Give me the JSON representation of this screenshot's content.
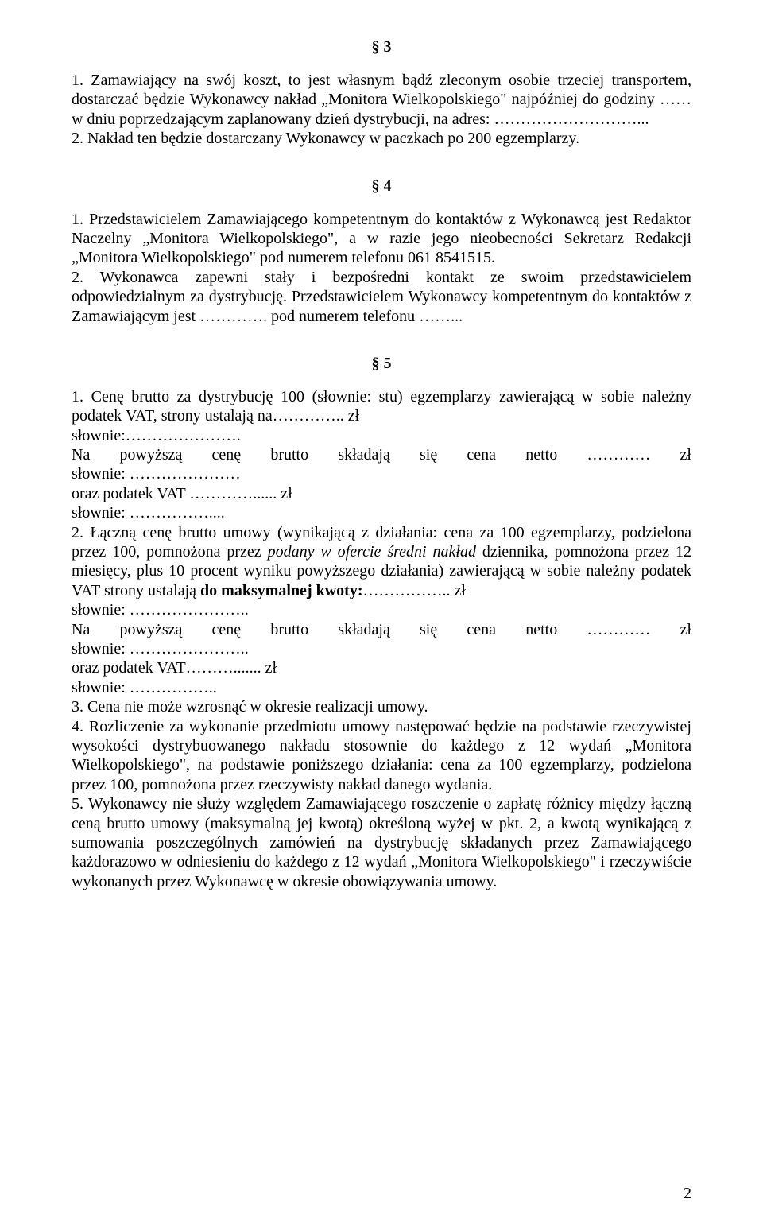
{
  "section3": {
    "number": "§ 3",
    "p1": "1. Zamawiający na swój koszt, to jest własnym bądź zleconym osobie trzeciej transportem, dostarczać będzie Wykonawcy nakład „Monitora Wielkopolskiego\" najpóźniej do godziny …… w dniu poprzedzającym zaplanowany dzień dystrybucji, na adres: ………………………...",
    "p2": "2. Nakład ten będzie dostarczany Wykonawcy w paczkach po 200 egzemplarzy."
  },
  "section4": {
    "number": "§ 4",
    "p1": "1. Przedstawicielem Zamawiającego kompetentnym do kontaktów z Wykonawcą jest Redaktor Naczelny „Monitora Wielkopolskiego\", a w razie jego nieobecności Sekretarz Redakcji „Monitora Wielkopolskiego\" pod numerem telefonu 061 8541515.",
    "p2": "2. Wykonawca zapewni stały i bezpośredni kontakt ze swoim przedstawicielem odpowiedzialnym za dystrybucję. Przedstawicielem Wykonawcy kompetentnym do kontaktów z Zamawiającym jest …………. pod numerem telefonu ……..."
  },
  "section5": {
    "number": "§ 5",
    "p1a": "1.    Cenę brutto za dystrybucję 100 (słownie: stu) egzemplarzy zawierającą w sobie należny podatek VAT, strony ustalają na………….. zł",
    "p1b": "słownie:………………….",
    "line_na1_a": "Na",
    "line_na1_b": "powyższą",
    "line_na1_c": "cenę",
    "line_na1_d": "brutto",
    "line_na1_e": "składają",
    "line_na1_f": "się",
    "line_na1_g": "cena",
    "line_na1_h": "netto",
    "line_na1_i": "…………",
    "line_na1_j": "zł",
    "p1c": "słownie: …………………",
    "p1d": "oraz podatek VAT …………...... zł",
    "p1e": "słownie: ……………....",
    "p2a_pre": "2.    Łączną cenę brutto umowy (wynikającą z działania: cena za 100 egzemplarzy, podzielona przez 100, pomnożona przez ",
    "p2a_italic": "podany w ofercie średni nakład",
    "p2a_mid": " dziennika, pomnożona przez 12 miesięcy, plus 10 procent wyniku powyższego działania) zawierającą w sobie należny podatek VAT strony ustalają ",
    "p2a_bold": "do maksymalnej kwoty:",
    "p2a_post": "…………….. zł",
    "p2b": "słownie: …………………..",
    "line_na2_a": "Na",
    "line_na2_b": "powyższą",
    "line_na2_c": "cenę",
    "line_na2_d": "brutto",
    "line_na2_e": "składają",
    "line_na2_f": "się",
    "line_na2_g": "cena",
    "line_na2_h": "netto",
    "line_na2_i": "…………",
    "line_na2_j": "zł",
    "p2c": "słownie: …………………..",
    "p2d": "oraz podatek VAT………....... zł",
    "p2e": "słownie: ……………..",
    "p3": "3.    Cena nie może wzrosnąć w okresie realizacji umowy.",
    "p4": "4.   Rozliczenie za wykonanie przedmiotu umowy następować będzie na podstawie rzeczywistej wysokości dystrybuowanego nakładu stosownie do każdego z 12 wydań „Monitora Wielkopolskiego\", na podstawie poniższego działania: cena za 100 egzemplarzy, podzielona przez 100, pomnożona przez rzeczywisty nakład danego wydania.",
    "p5": "5. Wykonawcy nie służy względem Zamawiającego roszczenie o zapłatę różnicy między łączną ceną brutto umowy (maksymalną jej kwotą) określoną wyżej w pkt. 2, a kwotą wynikającą z sumowania poszczególnych zamówień na dystrybucję składanych przez Zamawiającego każdorazowo w odniesieniu do każdego z 12 wydań „Monitora Wielkopolskiego\" i rzeczywiście wykonanych przez Wykonawcę w okresie obowiązywania umowy."
  },
  "page_number": "2"
}
